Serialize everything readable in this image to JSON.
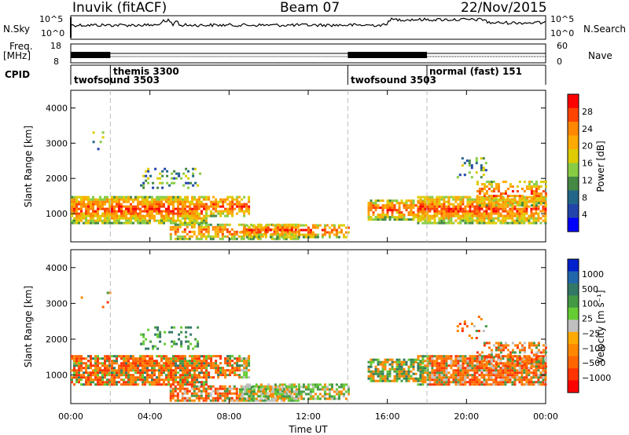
{
  "header": {
    "station": "Inuvik (fitACF)",
    "beam": "Beam 07",
    "date": "22/Nov/2015"
  },
  "top_panels": {
    "nsky_label": "N.Sky",
    "nsearch_label": "N.Search",
    "nsky_ticks": [
      "10^5",
      "10^0"
    ],
    "nsearch_ticks": [
      "10^5",
      "10^0"
    ],
    "freq_label": "Freq.",
    "freq_unit": "[MHz]",
    "freq_ticks": [
      "18",
      "8"
    ],
    "nave_label": "Nave",
    "nave_ticks": [
      "60",
      "0"
    ],
    "cpid_label": "CPID"
  },
  "cpid_segments": [
    {
      "name": "twofsound 3503",
      "start_h": 0.0,
      "end_h": 2.0
    },
    {
      "name": "themis 3300",
      "start_h": 2.0,
      "end_h": 14.0
    },
    {
      "name": "twofsound 3503",
      "start_h": 14.0,
      "end_h": 18.0
    },
    {
      "name": "normal (fast) 151",
      "start_h": 18.0,
      "end_h": 24.0
    }
  ],
  "power_colorbar": {
    "label": "Power [dB]",
    "ticks": [
      "28",
      "24",
      "20",
      "16",
      "12",
      "8",
      "4"
    ],
    "colors": [
      "#ff0000",
      "#ff4400",
      "#ff8800",
      "#ffaa00",
      "#ddcc00",
      "#88cc44",
      "#448844",
      "#226688",
      "#2244aa",
      "#0000ff"
    ]
  },
  "velocity_colorbar": {
    "label": "Velocity [m s⁻¹]",
    "ticks": [
      "1000",
      "500",
      "100",
      "25",
      "−25",
      "−100",
      "−500",
      "−1000"
    ],
    "colors": [
      "#0022cc",
      "#2266aa",
      "#337766",
      "#449944",
      "#66cc33",
      "#c0c0c0",
      "#ffaa00",
      "#ff8800",
      "#ff6600",
      "#ff3300",
      "#ff0000"
    ]
  },
  "chart_data": [
    {
      "type": "heatmap",
      "title": "Power",
      "xlabel": "",
      "ylabel": "Slant Range [km]",
      "x_ticks": [
        "00:00",
        "04:00",
        "08:00",
        "12:00",
        "16:00",
        "20:00",
        "00:00"
      ],
      "y_ticks": [
        "1000",
        "2000",
        "3000",
        "4000"
      ],
      "xlim_hours": [
        0,
        24
      ],
      "ylim_km": [
        200,
        4500
      ],
      "vlines_hours": [
        2,
        14,
        18
      ]
    },
    {
      "type": "heatmap",
      "title": "Velocity",
      "xlabel": "Time UT",
      "ylabel": "Slant Range [km]",
      "x_ticks": [
        "00:00",
        "04:00",
        "08:00",
        "12:00",
        "16:00",
        "20:00",
        "00:00"
      ],
      "y_ticks": [
        "1000",
        "2000",
        "3000",
        "4000"
      ],
      "xlim_hours": [
        0,
        24
      ],
      "ylim_km": [
        200,
        4500
      ],
      "vlines_hours": [
        2,
        14,
        18
      ]
    }
  ]
}
